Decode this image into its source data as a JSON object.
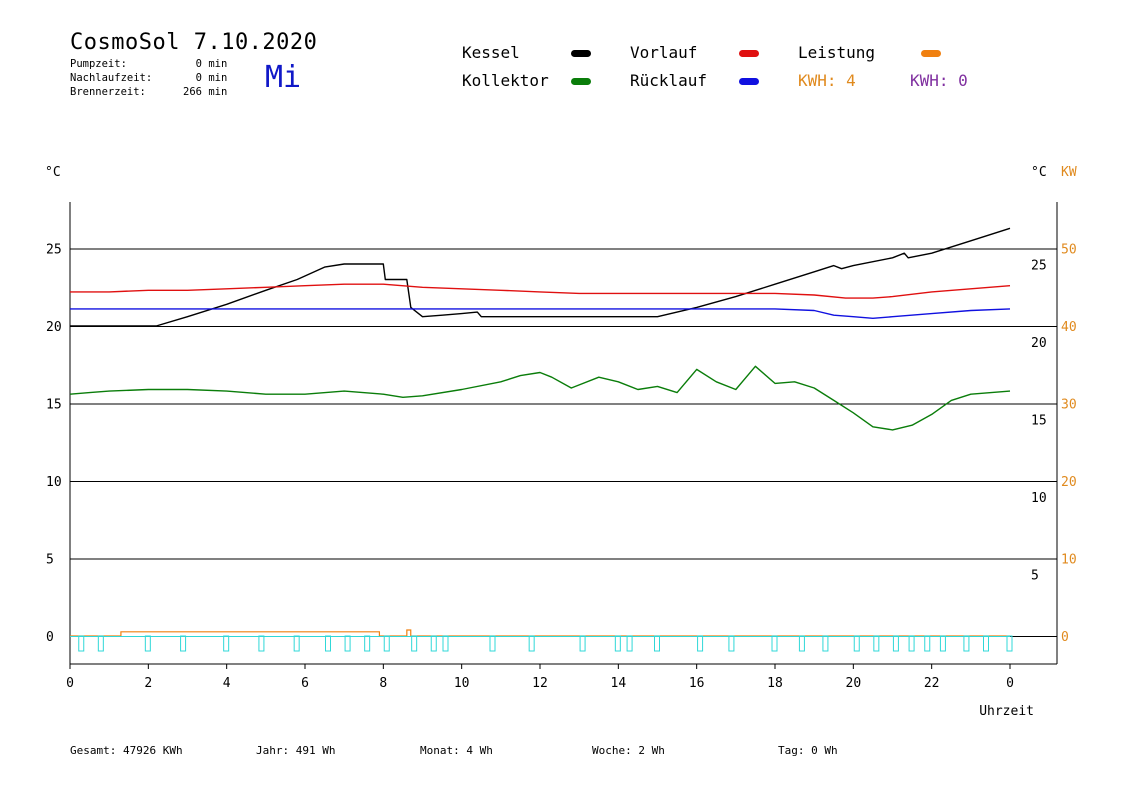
{
  "header": {
    "title": "CosmoSol 7.10.2020",
    "weekday": "Mi",
    "stats": [
      {
        "label": "Pumpzeit:",
        "value": "0",
        "unit": "min"
      },
      {
        "label": "Nachlaufzeit:",
        "value": "0",
        "unit": "min"
      },
      {
        "label": "Brennerzeit:",
        "value": "266",
        "unit": "min"
      }
    ]
  },
  "legend": {
    "kessel": {
      "label": "Kessel",
      "color": "#000000"
    },
    "kollektor": {
      "label": "Kollektor",
      "color": "#0a7d0a"
    },
    "vorlauf": {
      "label": "Vorlauf",
      "color": "#e01010"
    },
    "ruecklauf": {
      "label": "Rücklauf",
      "color": "#1010e0"
    },
    "leistung": {
      "label": "Leistung",
      "color": "#f08010"
    },
    "kwh1": {
      "label": "KWH: 4",
      "color": "#e08a1e"
    },
    "kwh2": {
      "label": "KWH: 0",
      "color": "#8030a0"
    }
  },
  "footer": {
    "gesamt": {
      "label": "Gesamt:",
      "value": "47926 KWh"
    },
    "jahr": {
      "label": "Jahr:",
      "value": "491 Wh"
    },
    "monat": {
      "label": "Monat:",
      "value": "4 Wh"
    },
    "woche": {
      "label": "Woche:",
      "value": "2 Wh"
    },
    "tag": {
      "label": "Tag:",
      "value": "0 Wh"
    }
  },
  "chart_data": {
    "type": "line",
    "xlabel": "Uhrzeit",
    "x_ticks": [
      "0",
      "2",
      "4",
      "6",
      "8",
      "10",
      "12",
      "14",
      "16",
      "18",
      "20",
      "22",
      "0"
    ],
    "xlim": [
      0,
      24
    ],
    "left_axis": {
      "unit": "°C",
      "ticks": [
        0,
        5,
        10,
        15,
        20,
        25
      ],
      "ylim": [
        -2.5,
        27.5
      ]
    },
    "right_axis_temp": {
      "unit": "°C",
      "ticks": [
        5,
        10,
        15,
        20,
        25
      ]
    },
    "right_axis_power": {
      "unit": "KW",
      "ticks": [
        0,
        10,
        20,
        30,
        40,
        50
      ],
      "color": "#e08a1e"
    },
    "grid": "horizontal",
    "series": [
      {
        "name": "Kessel",
        "color": "#000000",
        "points": [
          [
            0,
            20.0
          ],
          [
            0.3,
            20.0
          ],
          [
            2.2,
            20.0
          ],
          [
            3,
            20.6
          ],
          [
            4,
            21.4
          ],
          [
            5,
            22.3
          ],
          [
            5.8,
            23.0
          ],
          [
            6.5,
            23.8
          ],
          [
            7,
            24.0
          ],
          [
            8,
            24.0
          ],
          [
            8.05,
            23.0
          ],
          [
            8.6,
            23.0
          ],
          [
            8.7,
            21.2
          ],
          [
            9,
            20.6
          ],
          [
            9.5,
            20.7
          ],
          [
            10,
            20.8
          ],
          [
            10.4,
            20.9
          ],
          [
            10.5,
            20.6
          ],
          [
            12,
            20.6
          ],
          [
            14,
            20.6
          ],
          [
            15,
            20.6
          ],
          [
            16,
            21.2
          ],
          [
            17,
            21.9
          ],
          [
            18,
            22.7
          ],
          [
            19,
            23.5
          ],
          [
            19.5,
            23.9
          ],
          [
            19.7,
            23.7
          ],
          [
            20,
            23.9
          ],
          [
            21,
            24.4
          ],
          [
            21.3,
            24.7
          ],
          [
            21.4,
            24.4
          ],
          [
            22,
            24.7
          ],
          [
            23,
            25.5
          ],
          [
            24,
            26.3
          ]
        ]
      },
      {
        "name": "Vorlauf",
        "color": "#e01010",
        "points": [
          [
            0,
            22.2
          ],
          [
            1,
            22.2
          ],
          [
            2,
            22.3
          ],
          [
            3,
            22.3
          ],
          [
            4,
            22.4
          ],
          [
            5,
            22.5
          ],
          [
            6,
            22.6
          ],
          [
            7,
            22.7
          ],
          [
            8,
            22.7
          ],
          [
            9,
            22.5
          ],
          [
            10,
            22.4
          ],
          [
            11,
            22.3
          ],
          [
            12,
            22.2
          ],
          [
            13,
            22.1
          ],
          [
            14,
            22.1
          ],
          [
            15,
            22.1
          ],
          [
            16,
            22.1
          ],
          [
            17,
            22.1
          ],
          [
            18,
            22.1
          ],
          [
            19,
            22.0
          ],
          [
            19.8,
            21.8
          ],
          [
            20.5,
            21.8
          ],
          [
            21,
            21.9
          ],
          [
            22,
            22.2
          ],
          [
            23,
            22.4
          ],
          [
            24,
            22.6
          ]
        ]
      },
      {
        "name": "Rücklauf",
        "color": "#1010e0",
        "points": [
          [
            0,
            21.1
          ],
          [
            2,
            21.1
          ],
          [
            4,
            21.1
          ],
          [
            6,
            21.1
          ],
          [
            8,
            21.1
          ],
          [
            10,
            21.1
          ],
          [
            12,
            21.1
          ],
          [
            14,
            21.1
          ],
          [
            16,
            21.1
          ],
          [
            18,
            21.1
          ],
          [
            19,
            21.0
          ],
          [
            19.5,
            20.7
          ],
          [
            20,
            20.6
          ],
          [
            20.5,
            20.5
          ],
          [
            21,
            20.6
          ],
          [
            22,
            20.8
          ],
          [
            23,
            21.0
          ],
          [
            24,
            21.1
          ]
        ]
      },
      {
        "name": "Kollektor",
        "color": "#0a7d0a",
        "points": [
          [
            0,
            15.6
          ],
          [
            0.5,
            15.7
          ],
          [
            1,
            15.8
          ],
          [
            2,
            15.9
          ],
          [
            3,
            15.9
          ],
          [
            4,
            15.8
          ],
          [
            5,
            15.6
          ],
          [
            6,
            15.6
          ],
          [
            7,
            15.8
          ],
          [
            8,
            15.6
          ],
          [
            8.5,
            15.4
          ],
          [
            9,
            15.5
          ],
          [
            10,
            15.9
          ],
          [
            11,
            16.4
          ],
          [
            11.5,
            16.8
          ],
          [
            12,
            17.0
          ],
          [
            12.3,
            16.7
          ],
          [
            12.8,
            16.0
          ],
          [
            13.5,
            16.7
          ],
          [
            14,
            16.4
          ],
          [
            14.5,
            15.9
          ],
          [
            15,
            16.1
          ],
          [
            15.5,
            15.7
          ],
          [
            16,
            17.2
          ],
          [
            16.5,
            16.4
          ],
          [
            17,
            15.9
          ],
          [
            17.5,
            17.4
          ],
          [
            18,
            16.3
          ],
          [
            18.5,
            16.4
          ],
          [
            19,
            16.0
          ],
          [
            19.5,
            15.2
          ],
          [
            20,
            14.4
          ],
          [
            20.5,
            13.5
          ],
          [
            21,
            13.3
          ],
          [
            21.5,
            13.6
          ],
          [
            22,
            14.3
          ],
          [
            22.5,
            15.2
          ],
          [
            23,
            15.6
          ],
          [
            24,
            15.8
          ]
        ]
      }
    ],
    "leistung_steps": [
      [
        0,
        0
      ],
      [
        1.3,
        0
      ],
      [
        1.3,
        0.7
      ],
      [
        7.9,
        0.7
      ],
      [
        7.9,
        0
      ],
      [
        8.6,
        0
      ],
      [
        8.6,
        1.0
      ],
      [
        8.7,
        1.0
      ],
      [
        8.7,
        0
      ],
      [
        24,
        0
      ]
    ],
    "pump_marks": [
      0.3,
      0.8,
      2.0,
      2.9,
      4.0,
      4.9,
      5.8,
      6.6,
      7.1,
      7.6,
      8.1,
      8.8,
      9.3,
      9.6,
      10.8,
      11.8,
      13.1,
      14.0,
      14.3,
      15.0,
      16.1,
      16.9,
      18.0,
      18.7,
      19.3,
      20.1,
      20.6,
      21.1,
      21.5,
      21.9,
      22.3,
      22.9,
      23.4,
      24.0
    ]
  }
}
